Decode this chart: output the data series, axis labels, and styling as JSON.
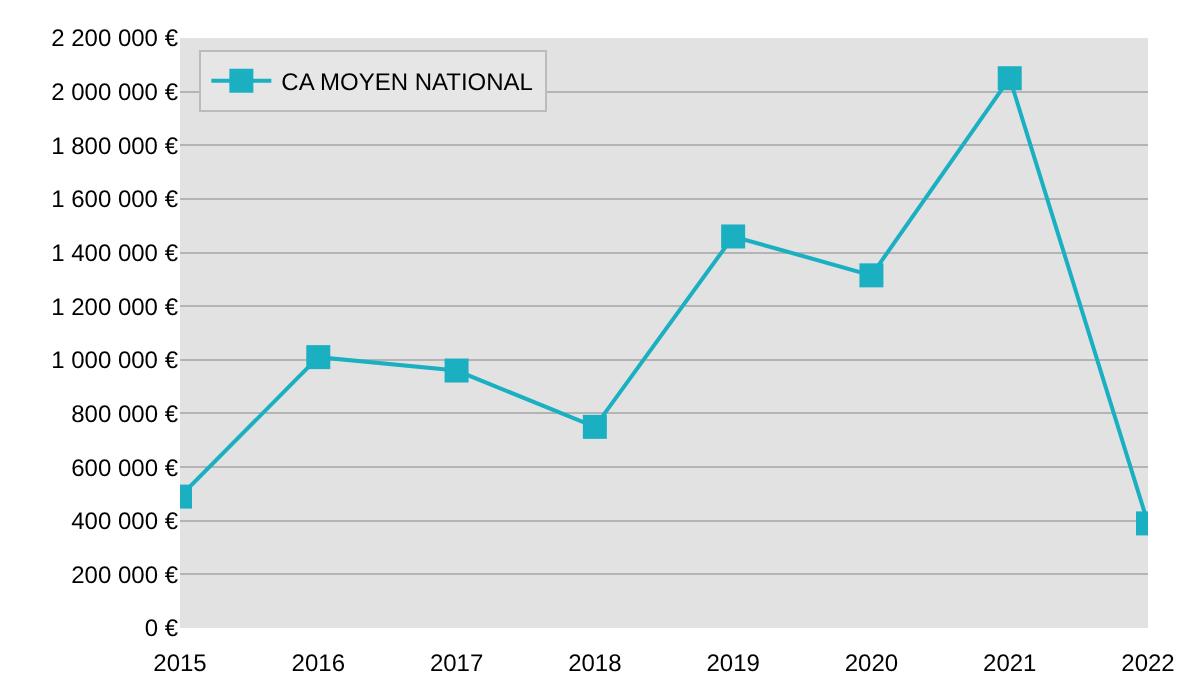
{
  "chart_data": {
    "type": "line",
    "x": [
      2015,
      2016,
      2017,
      2018,
      2019,
      2020,
      2021,
      2022
    ],
    "series": [
      {
        "name": "CA MOYEN NATIONAL",
        "color": "#1ab0c2",
        "values": [
          490000,
          1010000,
          960000,
          750000,
          1460000,
          1315000,
          2050000,
          390000
        ]
      }
    ],
    "xlim": [
      2015,
      2022
    ],
    "xticks": [
      2015,
      2016,
      2017,
      2018,
      2019,
      2020,
      2021,
      2022
    ],
    "ylim": [
      0,
      2200000
    ],
    "yticks": [
      {
        "value": 0,
        "label": "0 €"
      },
      {
        "value": 200000,
        "label": "200 000 €"
      },
      {
        "value": 400000,
        "label": "400 000 €"
      },
      {
        "value": 600000,
        "label": "600 000 €"
      },
      {
        "value": 800000,
        "label": "800 000 €"
      },
      {
        "value": 1000000,
        "label": "1 000 000 €"
      },
      {
        "value": 1200000,
        "label": "1 200 000 €"
      },
      {
        "value": 1400000,
        "label": "1 400 000 €"
      },
      {
        "value": 1600000,
        "label": "1 600 000 €"
      },
      {
        "value": 1800000,
        "label": "1 800 000 €"
      },
      {
        "value": 2000000,
        "label": "2 000 000 €"
      },
      {
        "value": 2200000,
        "label": "2 200 000 €"
      }
    ],
    "grid": "y",
    "legend": "top left",
    "marker": "square",
    "line_style": "solid"
  }
}
